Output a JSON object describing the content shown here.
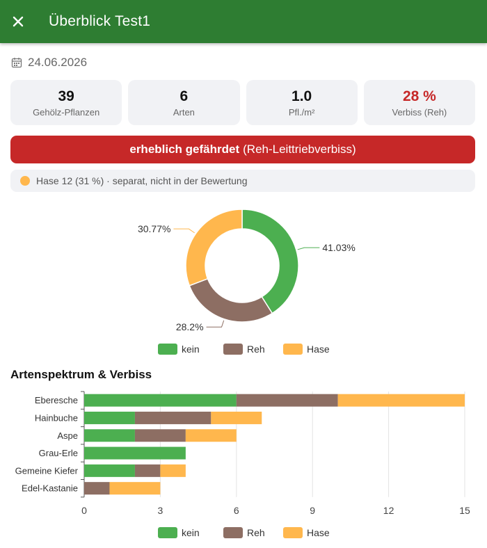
{
  "header": {
    "title": "Überblick Test1",
    "close_icon": "close-icon"
  },
  "date": "24.06.2026",
  "stats": [
    {
      "value": "39",
      "label": "Gehölz-Pflanzen"
    },
    {
      "value": "6",
      "label": "Arten"
    },
    {
      "value": "1.0",
      "label": "Pfl./m²"
    },
    {
      "value": "28 %",
      "label": "Verbiss (Reh)"
    }
  ],
  "risk": {
    "strong": "erheblich gefährdet",
    "rest": "(Reh-Leittriebverbiss)",
    "color": "#c62828"
  },
  "hare_note": "Hase 12 (31 %) · separat, nicht in der Bewertung",
  "colors": {
    "kein": "#4caf50",
    "Reh": "#8d6e63",
    "Hase": "#ffb74d",
    "appbar": "#2e7d32"
  },
  "section_title": "Artenspektrum & Verbiss",
  "chart_data": [
    {
      "type": "pie",
      "variant": "donut",
      "labels": [
        "kein",
        "Reh",
        "Hase"
      ],
      "values": [
        41.03,
        28.2,
        30.77
      ],
      "value_labels": [
        "41.03%",
        "28.2%",
        "30.77%"
      ],
      "legend": [
        "kein",
        "Reh",
        "Hase"
      ],
      "legend_position": "bottom"
    },
    {
      "type": "bar",
      "orientation": "horizontal",
      "stacked": true,
      "categories": [
        "Eberesche",
        "Hainbuche",
        "Aspe",
        "Grau-Erle",
        "Gemeine Kiefer",
        "Edel-Kastanie"
      ],
      "series": [
        {
          "name": "kein",
          "values": [
            6,
            2,
            2,
            4,
            2,
            0
          ]
        },
        {
          "name": "Reh",
          "values": [
            4,
            3,
            2,
            0,
            1,
            1
          ]
        },
        {
          "name": "Hase",
          "values": [
            5,
            2,
            2,
            0,
            1,
            2
          ]
        }
      ],
      "xlim": [
        0,
        15
      ],
      "xticks": [
        0,
        3,
        6,
        9,
        12,
        15
      ],
      "grid": true,
      "legend_position": "bottom"
    }
  ]
}
